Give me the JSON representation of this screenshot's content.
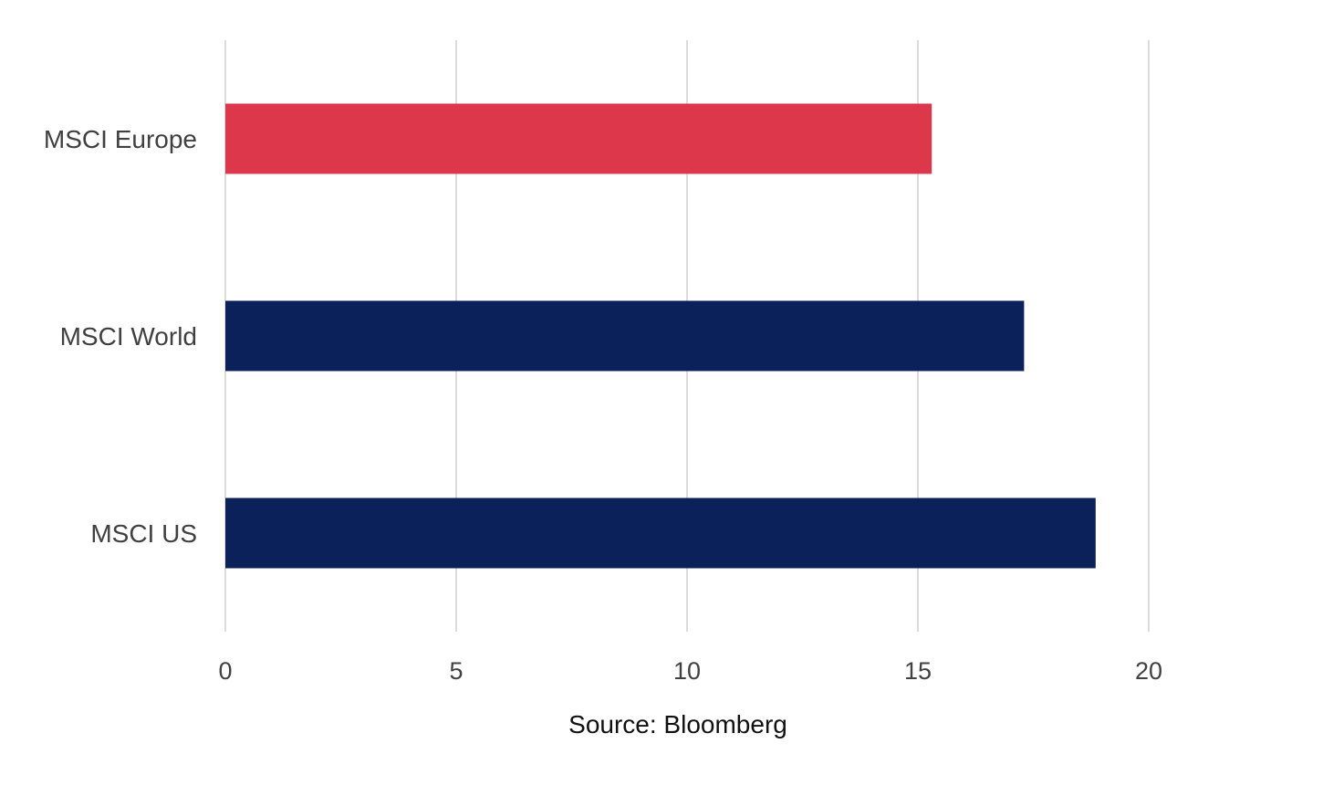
{
  "chart_data": {
    "type": "bar",
    "orientation": "horizontal",
    "categories": [
      "MSCI Europe",
      "MSCI World",
      "MSCI US"
    ],
    "values": [
      15.3,
      17.3,
      18.85
    ],
    "colors": [
      "#dc374b",
      "#0b2159",
      "#0b2159"
    ],
    "xlim": [
      0,
      20
    ],
    "xticks": [
      0,
      5,
      10,
      15,
      20
    ],
    "grid": true,
    "legend": "none"
  },
  "source": "Source: Bloomberg"
}
